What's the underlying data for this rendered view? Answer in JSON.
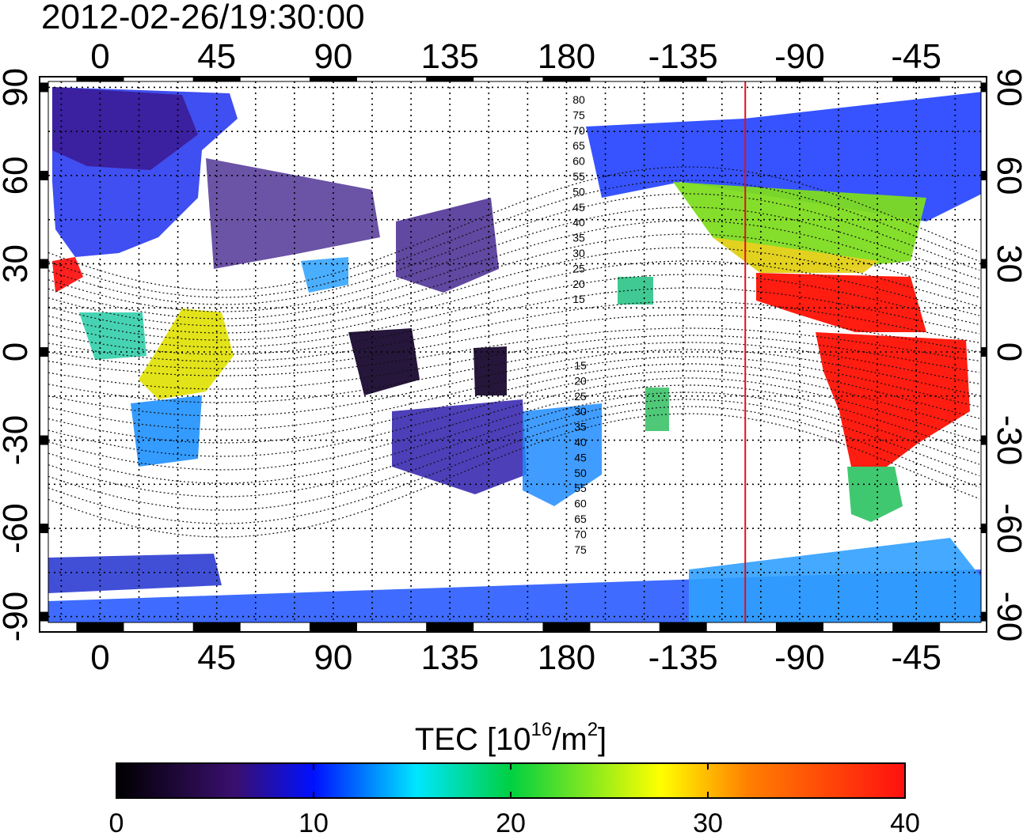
{
  "title": "2012-02-26/19:30:00",
  "map": {
    "top_lon_labels": [
      "0",
      "45",
      "90",
      "135",
      "180",
      "-135",
      "-90",
      "-45"
    ],
    "bottom_lon_labels": [
      "0",
      "45",
      "90",
      "135",
      "180",
      "-135",
      "-90",
      "-45"
    ],
    "left_lat_labels": [
      "90",
      "60",
      "30",
      "0",
      "-30",
      "-60",
      "-90"
    ],
    "right_lat_labels": [
      "90",
      "60",
      "30",
      "0",
      "-30",
      "-60",
      "-90"
    ],
    "lon_ticks": [
      0,
      45,
      90,
      135,
      180,
      225,
      270,
      315
    ],
    "lat_ticks": [
      90,
      60,
      30,
      0,
      -30,
      -60,
      -90
    ],
    "lon_range": [
      -20,
      340
    ],
    "lat_range": [
      -92,
      92
    ],
    "grid_lines": "dotted",
    "terminator_line_lon": 249,
    "terminator_color": "#e0101c",
    "contour_labels": [
      "80",
      "75",
      "70",
      "65",
      "60",
      "55",
      "50",
      "45",
      "40",
      "35",
      "30",
      "25",
      "20",
      "15",
      "15",
      "20",
      "25",
      "30",
      "35",
      "40",
      "45",
      "50",
      "55",
      "60",
      "65",
      "70",
      "75"
    ]
  },
  "colorbar": {
    "label_prefix": "TEC  [10",
    "label_sup1": "16",
    "label_mid": "/m",
    "label_sup2": "2",
    "label_suffix": "]",
    "ticks": [
      "0",
      "10",
      "20",
      "30",
      "40"
    ],
    "range": [
      0,
      40
    ],
    "stops": [
      "#000000",
      "#3a0f6e",
      "#0010ff",
      "#00e6ff",
      "#00d040",
      "#ffff00",
      "#ff8000",
      "#ff1010"
    ]
  }
}
